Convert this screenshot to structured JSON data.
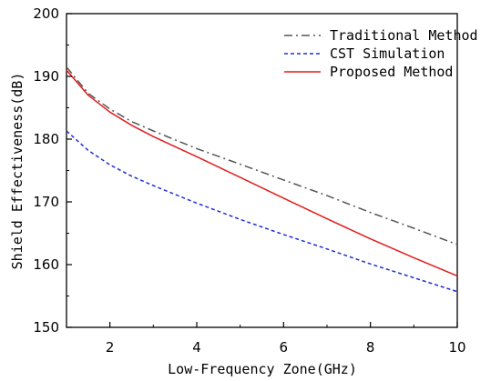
{
  "chart_data": {
    "type": "line",
    "xlabel": "Low-Frequency Zone(GHz)",
    "ylabel": "Shield Effectiveness(dB)",
    "xlim": [
      1,
      10
    ],
    "ylim": [
      150,
      200
    ],
    "x_ticks": [
      2,
      4,
      6,
      8,
      10
    ],
    "y_ticks": [
      150,
      160,
      170,
      180,
      190,
      200
    ],
    "grid": false,
    "legend_position": "top-right",
    "series": [
      {
        "name": "Traditional Method",
        "color": "#555555",
        "style": "dashdot",
        "x": [
          1,
          1.5,
          2,
          2.5,
          3,
          4,
          5,
          6,
          7,
          8,
          9,
          10
        ],
        "y": [
          191.5,
          187.3,
          184.8,
          182.8,
          181.3,
          178.5,
          176.0,
          173.5,
          171.0,
          168.3,
          165.8,
          163.2
        ]
      },
      {
        "name": "CST Simulation",
        "color": "#1f2fd6",
        "style": "dashed",
        "x": [
          1,
          1.5,
          2,
          2.5,
          3,
          4,
          5,
          6,
          7,
          8,
          9,
          10
        ],
        "y": [
          181.3,
          178.2,
          175.9,
          174.1,
          172.6,
          169.8,
          167.2,
          164.8,
          162.5,
          160.1,
          157.9,
          155.7
        ]
      },
      {
        "name": "Proposed Method",
        "color": "#e01c1c",
        "style": "solid",
        "x": [
          1,
          1.5,
          2,
          2.5,
          3,
          4,
          5,
          6,
          7,
          8,
          9,
          10
        ],
        "y": [
          191.0,
          187.0,
          184.3,
          182.2,
          180.4,
          177.2,
          173.9,
          170.6,
          167.3,
          164.1,
          161.1,
          158.2
        ]
      }
    ]
  }
}
